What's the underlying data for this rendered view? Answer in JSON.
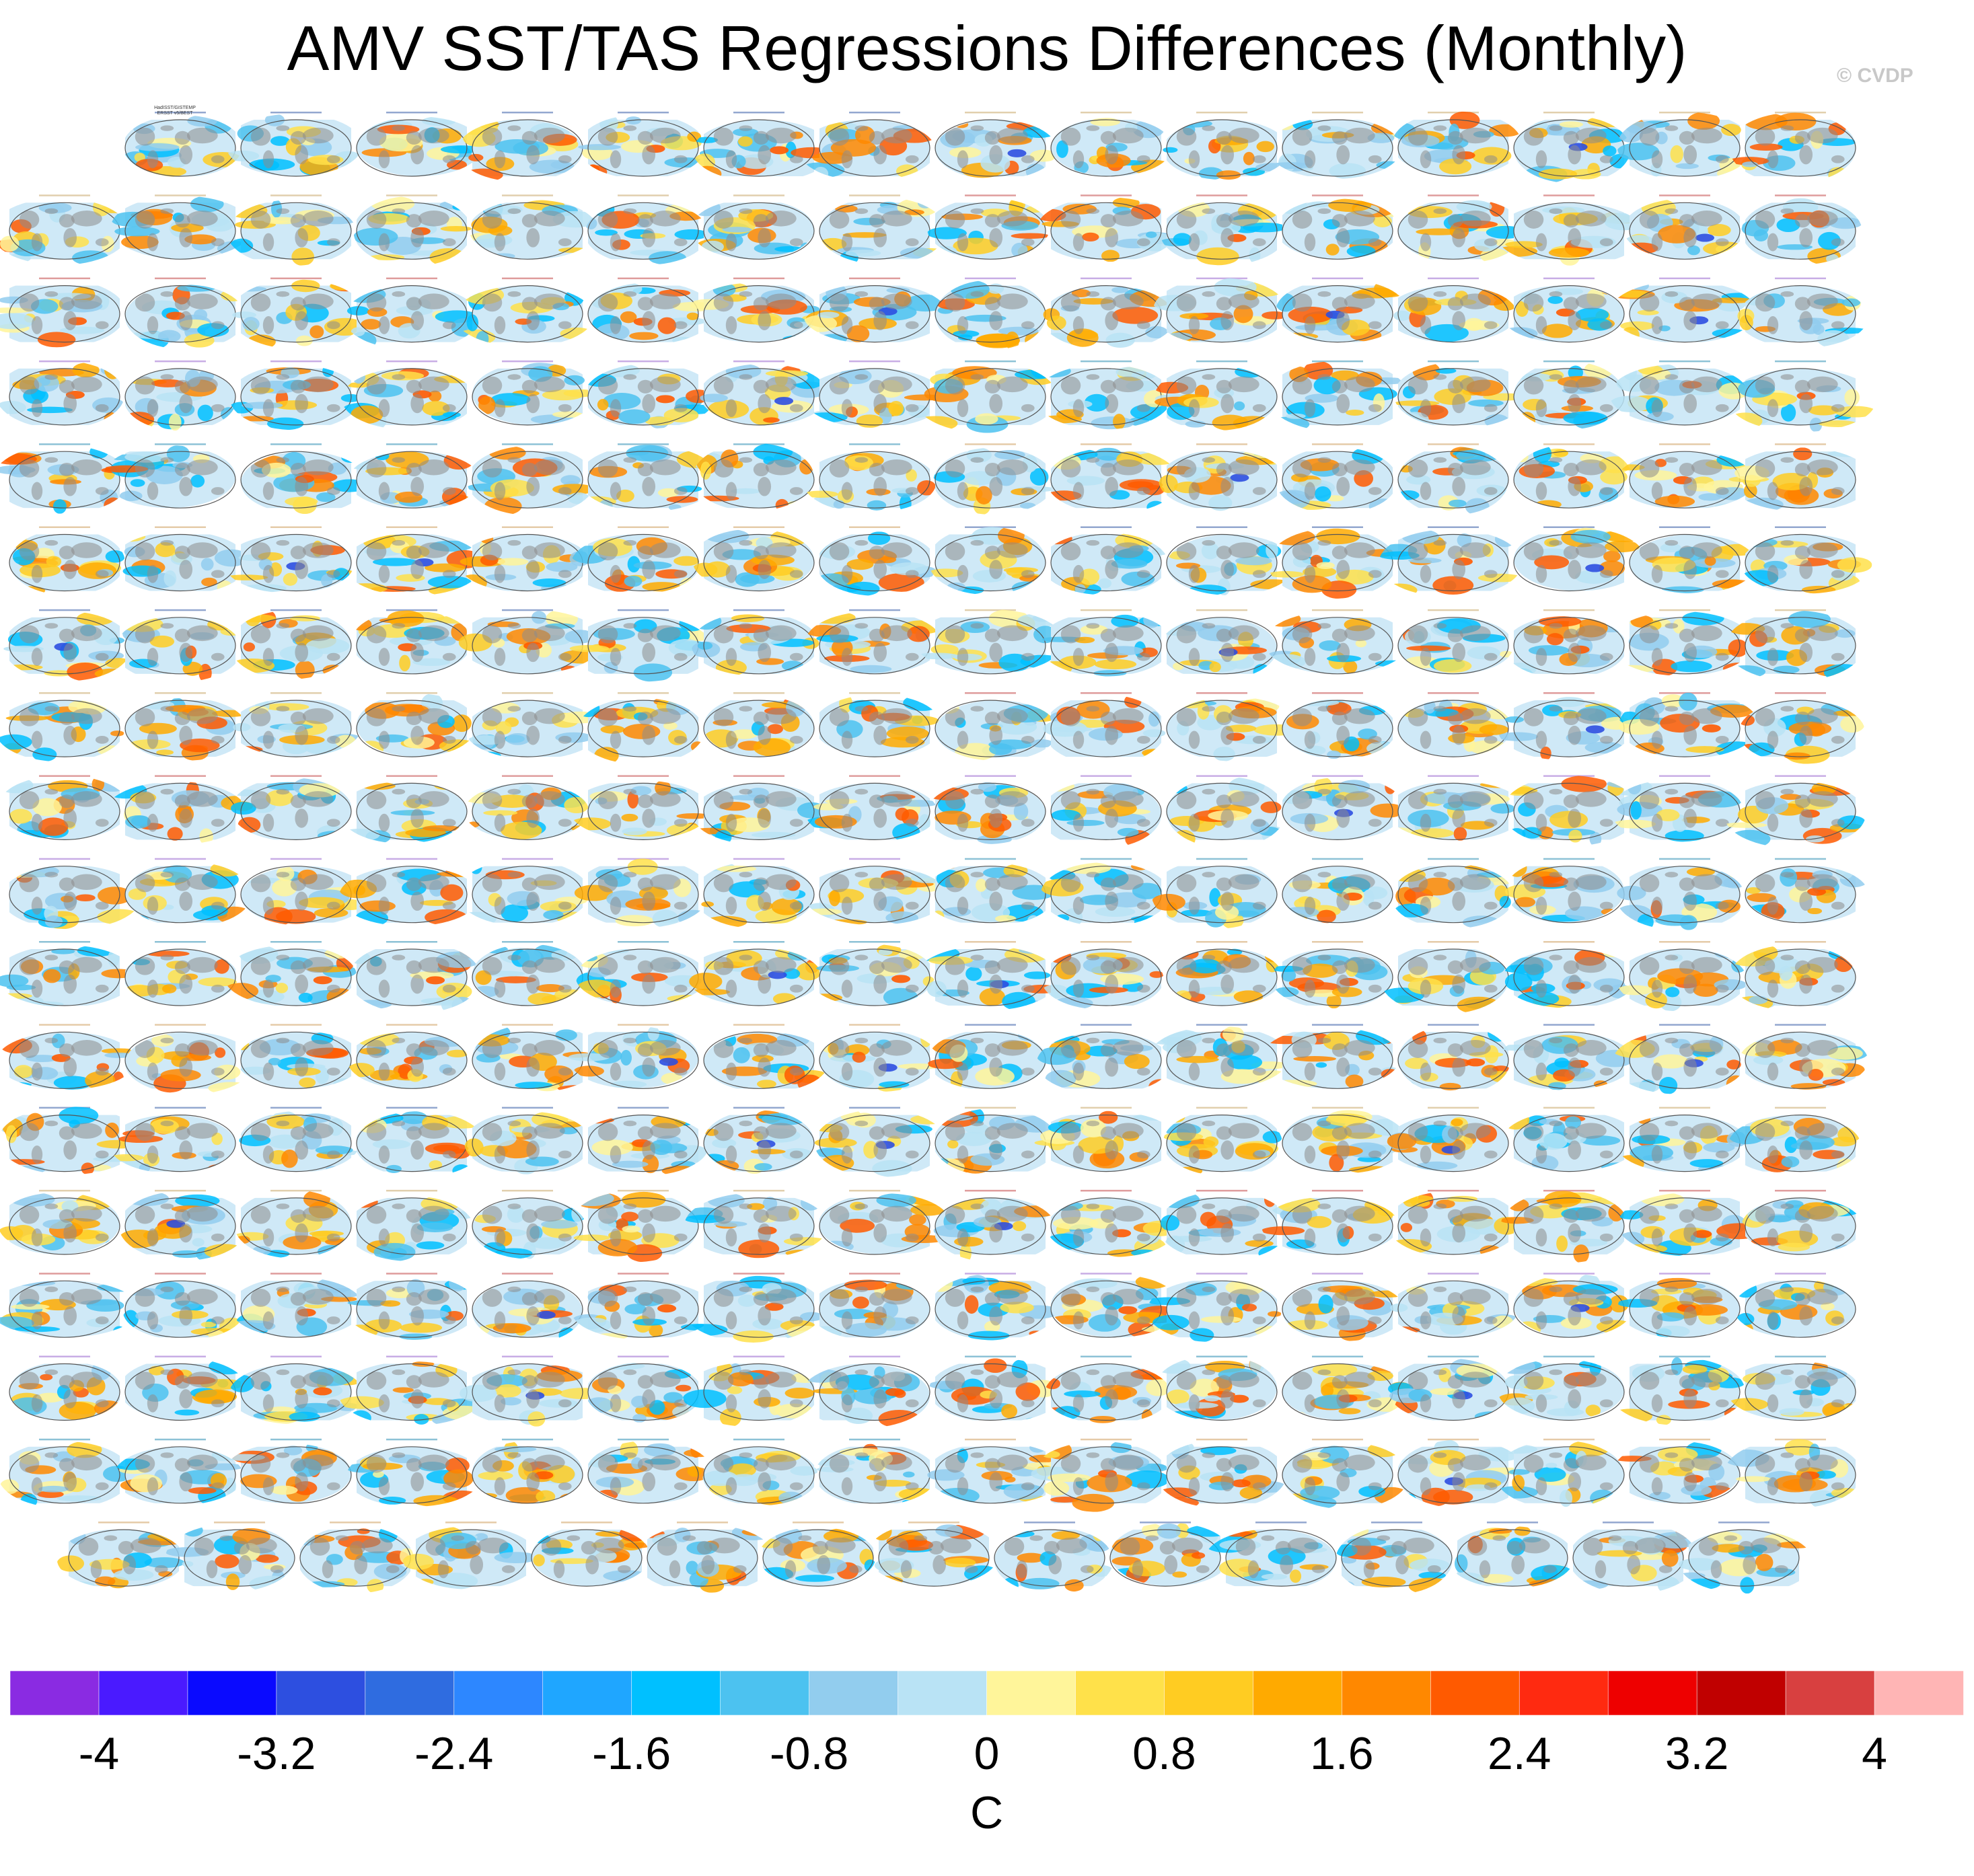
{
  "title": "AMV SST/TAS Regressions Differences (Monthly)",
  "copyright": "© CVDP",
  "chart_data": {
    "type": "heatmap",
    "description_kind": "small-multiples of global regression difference maps",
    "grid": {
      "rows": 18,
      "cols": 16,
      "first_row_cols": 15,
      "last_row_cols": 15
    },
    "first_panel_label": [
      "HadISST/GISTEMP",
      "ERSST v5/BEST"
    ],
    "panel_label_colors": [
      "#3a5fa8",
      "#c9a86a",
      "#c44a4a",
      "#9a6ad0",
      "#2f8fb5",
      "#d0a060"
    ],
    "colorbar": {
      "unit": "C",
      "tick_labels": [
        "-4",
        "-3.2",
        "-2.4",
        "-1.6",
        "-0.8",
        "0",
        "0.8",
        "1.6",
        "2.4",
        "3.2",
        "4"
      ],
      "colors": [
        "#8a2be2",
        "#4a1aff",
        "#0a0aff",
        "#2d4fe0",
        "#2f6ce0",
        "#2d87ff",
        "#1fa6ff",
        "#00c0ff",
        "#4cc2f0",
        "#92cdee",
        "#b9e3f5",
        "#fff59a",
        "#ffe14a",
        "#ffcc22",
        "#ffaa00",
        "#ff8800",
        "#ff5a00",
        "#ff2a10",
        "#ee0000",
        "#c00000",
        "#d84040",
        "#ffb5b5"
      ],
      "range": [
        -4,
        4
      ]
    }
  }
}
